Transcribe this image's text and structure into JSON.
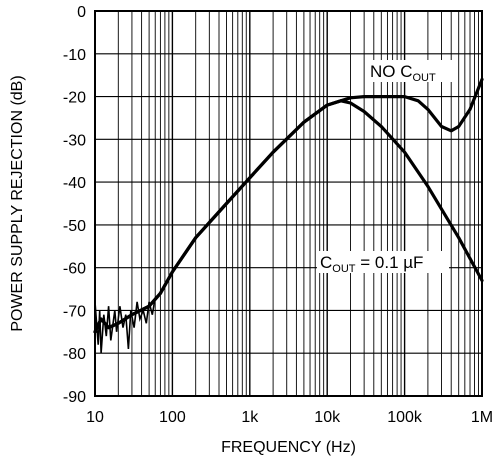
{
  "chart_data": {
    "type": "line",
    "title": "",
    "xlabel": "FREQUENCY (Hz)",
    "ylabel": "POWER SUPPLY REJECTION (dB)",
    "x_scale": "log",
    "xlim": [
      10,
      1000000
    ],
    "ylim": [
      -90,
      0
    ],
    "grid": true,
    "x_ticks": [
      10,
      100,
      1000,
      10000,
      100000,
      1000000
    ],
    "x_tick_labels": [
      "10",
      "100",
      "1k",
      "10k",
      "100k",
      "1M"
    ],
    "y_ticks": [
      0,
      -10,
      -20,
      -30,
      -40,
      -50,
      -60,
      -70,
      -80,
      -90
    ],
    "y_tick_labels": [
      "0",
      "-10",
      "-20",
      "-30",
      "-40",
      "-50",
      "-60",
      "-70",
      "-80",
      "-90"
    ],
    "series": [
      {
        "name": "NO C_OUT",
        "label_main": "NO C",
        "label_sub": "OUT",
        "label_rest": "",
        "x": [
          10,
          12,
          15,
          20,
          30,
          50,
          70,
          100,
          200,
          500,
          1000,
          2000,
          5000,
          10000,
          15000,
          20000,
          30000,
          50000,
          100000,
          150000,
          200000,
          300000,
          400000,
          500000,
          700000,
          1000000
        ],
        "y": [
          -75,
          -72,
          -74,
          -73,
          -71,
          -69,
          -66,
          -61,
          -53,
          -45,
          -39,
          -33,
          -26,
          -22,
          -21,
          -20.3,
          -20,
          -20,
          -20,
          -21,
          -23,
          -27,
          -28,
          -27,
          -23,
          -16
        ]
      },
      {
        "name": "C_OUT = 0.1 µF",
        "label_main": "C",
        "label_sub": "OUT",
        "label_rest": " = 0.1 µF",
        "x": [
          10,
          12,
          15,
          20,
          30,
          50,
          70,
          100,
          200,
          500,
          1000,
          2000,
          5000,
          10000,
          15000,
          20000,
          30000,
          50000,
          100000,
          200000,
          500000,
          1000000
        ],
        "y": [
          -75,
          -72,
          -74,
          -73,
          -71,
          -69,
          -66,
          -61,
          -53,
          -45,
          -39,
          -33,
          -26,
          -22,
          -21,
          -21.5,
          -23.5,
          -27,
          -33,
          -41,
          -53,
          -63
        ]
      }
    ]
  }
}
